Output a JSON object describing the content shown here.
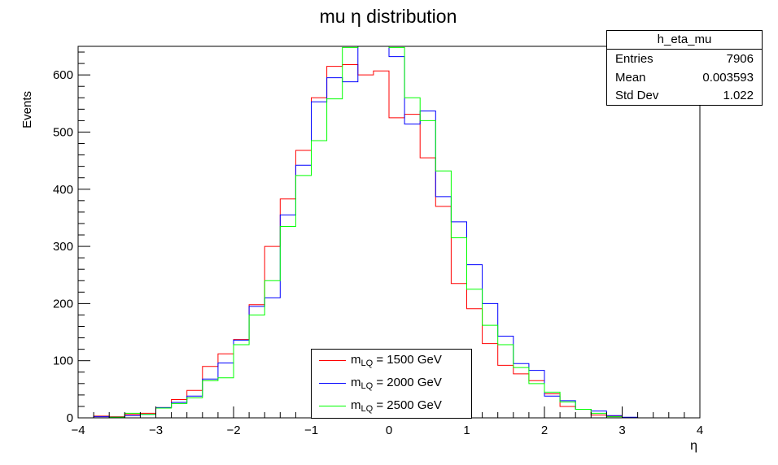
{
  "colors": {
    "red": "#ff0000",
    "blue": "#0000ff",
    "green": "#00ff00"
  },
  "chart_data": {
    "type": "histogram",
    "title": "mu η distribution",
    "xlabel": "η",
    "ylabel": "Events",
    "xlim": [
      -4,
      4
    ],
    "ylim": [
      0,
      650
    ],
    "xticks": [
      -4,
      -3,
      -2,
      -1,
      0,
      1,
      2,
      3,
      4
    ],
    "xtick_labels": [
      "−4",
      "−3",
      "−2",
      "−1",
      "0",
      "1",
      "2",
      "3",
      "4"
    ],
    "yticks": [
      0,
      100,
      200,
      300,
      400,
      500,
      600
    ],
    "yminor_step": 20,
    "xminor_step": 0.2,
    "bin_edges_start": -4,
    "bin_width": 0.2,
    "series": [
      {
        "name": "m_LQ = 1500 GeV",
        "color": "#ff0000",
        "values": [
          0,
          3,
          2,
          6,
          8,
          18,
          32,
          48,
          90,
          112,
          137,
          198,
          300,
          383,
          468,
          560,
          615,
          618,
          600,
          607,
          525,
          531,
          455,
          370,
          235,
          191,
          130,
          92,
          77,
          65,
          42,
          20,
          15,
          5,
          3,
          0,
          0,
          0,
          0,
          0
        ]
      },
      {
        "name": "m_LQ = 2000 GeV",
        "color": "#0000ff",
        "values": [
          0,
          2,
          1,
          4,
          6,
          18,
          27,
          38,
          68,
          96,
          136,
          195,
          210,
          355,
          442,
          553,
          595,
          588,
          660,
          660,
          632,
          514,
          537,
          387,
          343,
          268,
          200,
          143,
          95,
          83,
          38,
          30,
          15,
          12,
          4,
          1,
          0,
          0,
          0,
          0
        ]
      },
      {
        "name": "m_LQ = 2500 GeV",
        "color": "#00ff00",
        "values": [
          0,
          0,
          1,
          8,
          6,
          17,
          25,
          35,
          65,
          70,
          128,
          180,
          240,
          335,
          424,
          485,
          558,
          648,
          660,
          660,
          648,
          560,
          520,
          432,
          315,
          225,
          162,
          128,
          88,
          60,
          45,
          28,
          15,
          8,
          2,
          0,
          0,
          0,
          0,
          0
        ]
      }
    ],
    "legend_position": "bottom-center"
  },
  "stats": {
    "name": "h_eta_mu",
    "rows": [
      {
        "label": "Entries",
        "value": "7906"
      },
      {
        "label": "Mean",
        "value": "0.003593"
      },
      {
        "label": "Std Dev",
        "value": "1.022"
      }
    ]
  },
  "legend": {
    "items": [
      {
        "prefix": "m",
        "sub": "LQ",
        "suffix": " = 1500 GeV",
        "color": "#ff0000"
      },
      {
        "prefix": "m",
        "sub": "LQ",
        "suffix": " = 2000 GeV",
        "color": "#0000ff"
      },
      {
        "prefix": "m",
        "sub": "LQ",
        "suffix": " = 2500 GeV",
        "color": "#00ff00"
      }
    ]
  }
}
